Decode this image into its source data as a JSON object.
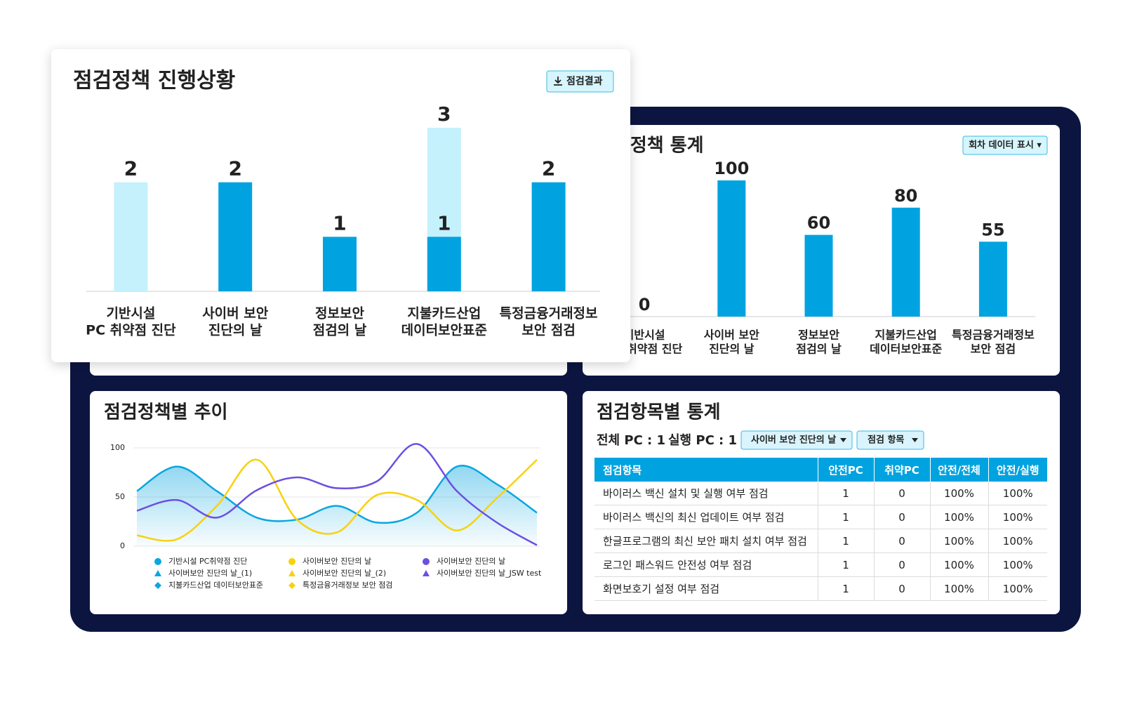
{
  "chart_data": [
    {
      "type": "bar",
      "mode": "overlay",
      "title": "점검정책 진행상황",
      "button": "점검결과",
      "categories": [
        [
          "기반시설",
          "PC 취약점 진단"
        ],
        [
          "사이버 보안",
          "진단의 날"
        ],
        [
          "정보보안",
          "점검의 날"
        ],
        [
          "지불카드산업",
          "데이터보안표준"
        ],
        [
          "특정금융거래정보",
          "보안 점검"
        ]
      ],
      "series": [
        {
          "color": "#c4f1fc",
          "values": [
            2,
            null,
            null,
            3,
            null
          ]
        },
        {
          "color": "#00a3e0",
          "values": [
            null,
            2,
            1,
            1,
            2
          ]
        }
      ],
      "ylim": [
        0,
        3
      ],
      "data_labels": true
    },
    {
      "type": "bar",
      "title": "점검정책 통계",
      "button": "회차 데이터 표시 ▾",
      "categories": [
        [
          "기반시설",
          "PC 취약점 진단"
        ],
        [
          "사이버 보안",
          "진단의 날"
        ],
        [
          "정보보안",
          "점검의 날"
        ],
        [
          "지불카드산업",
          "데이터보안표준"
        ],
        [
          "특정금융거래정보",
          "보안 점검"
        ]
      ],
      "values": [
        0,
        100,
        60,
        80,
        55
      ],
      "color": "#00a3e0",
      "ylim": [
        0,
        100
      ],
      "data_labels": true
    },
    {
      "type": "line",
      "title": "점검정책별 추이",
      "categories": [
        null,
        null,
        null,
        null,
        null,
        null,
        null,
        null,
        null,
        null,
        null
      ],
      "ylim": [
        0,
        100
      ],
      "yticks": [
        0,
        50,
        100
      ],
      "grid": true,
      "series": [
        {
          "name": "기반시설 PC취약점 진단",
          "color": "#0aa6e0",
          "marker": "circle",
          "area": true,
          "values": [
            56,
            81,
            56,
            29,
            27,
            41,
            24,
            34,
            81,
            63,
            34
          ]
        },
        {
          "name": "사이버보안 진단의 날",
          "color": "#f7d20f",
          "marker": "circle",
          "values": [
            11,
            7,
            41,
            88,
            27,
            14,
            52,
            47,
            16,
            49,
            88
          ]
        },
        {
          "name": "사이버보안 진단의 날",
          "color": "#6d4fe0",
          "marker": "circle",
          "values": [
            36,
            47,
            29,
            57,
            70,
            59,
            66,
            104,
            56,
            24,
            1
          ]
        },
        {
          "name": "사이버보안 진단의 날_(1)",
          "color": "#0aa6e0",
          "marker": "triangle",
          "values": [
            null,
            null,
            null,
            null,
            null,
            null,
            null,
            null,
            null,
            null,
            null
          ]
        },
        {
          "name": "사이버보안 진단의 날_(2)",
          "color": "#f7d20f",
          "marker": "triangle",
          "values": [
            null,
            null,
            null,
            null,
            null,
            null,
            null,
            null,
            null,
            null,
            null
          ]
        },
        {
          "name": "사이버보안 진단의 날_JSW test",
          "color": "#6d4fe0",
          "marker": "triangle",
          "values": [
            null,
            null,
            null,
            null,
            null,
            null,
            null,
            null,
            null,
            null,
            null
          ]
        },
        {
          "name": "지불카드산업 데이터보안표준",
          "color": "#0aa6e0",
          "marker": "diamond",
          "values": [
            null,
            null,
            null,
            null,
            null,
            null,
            null,
            null,
            null,
            null,
            null
          ]
        },
        {
          "name": "특정금융거래정보 보안 점검",
          "color": "#f7d20f",
          "marker": "diamond",
          "values": [
            null,
            null,
            null,
            null,
            null,
            null,
            null,
            null,
            null,
            null,
            null
          ]
        }
      ]
    }
  ],
  "item_stats": {
    "title": "점검항목별 통계",
    "total_pc": "전체 PC : 1",
    "run_pc": "실행 PC : 1",
    "filters": [
      "사이버 보안 진단의 날",
      "점검 항목"
    ],
    "columns": [
      "점검항목",
      "안전PC",
      "취약PC",
      "안전/전체",
      "안전/실행"
    ],
    "rows": [
      [
        "바이러스 백신 설치 및 실행 여부 점검",
        1,
        0,
        "100%",
        "100%"
      ],
      [
        "바이러스 백신의 최신 업데이트 여부 점검",
        1,
        0,
        "100%",
        "100%"
      ],
      [
        "한글프로그램의 최신 보안 패치 설치 여부 점검",
        1,
        0,
        "100%",
        "100%"
      ],
      [
        "로그인 패스워드 안전성 여부 점검",
        1,
        0,
        "100%",
        "100%"
      ],
      [
        "화면보호기 설정 여부 점검",
        1,
        0,
        "100%",
        "100%"
      ]
    ]
  }
}
